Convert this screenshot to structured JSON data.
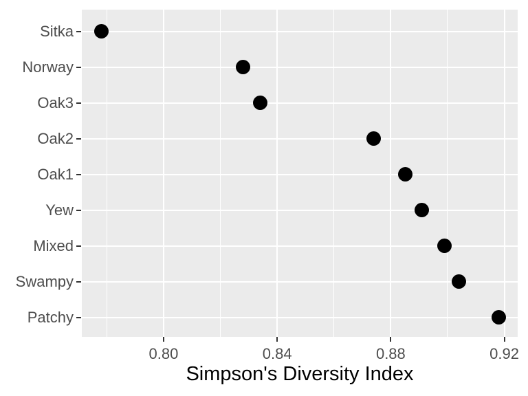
{
  "chart_data": {
    "type": "scatter",
    "variant": "cleveland-dot-plot",
    "orientation": "horizontal",
    "title": "",
    "xlabel": "Simpson's Diversity Index",
    "ylabel": "",
    "categories": [
      "Sitka",
      "Norway",
      "Oak3",
      "Oak2",
      "Oak1",
      "Yew",
      "Mixed",
      "Swampy",
      "Patchy"
    ],
    "values": [
      0.778,
      0.828,
      0.834,
      0.874,
      0.885,
      0.891,
      0.899,
      0.904,
      0.918
    ],
    "x_tick_labels": [
      "0.80",
      "0.84",
      "0.88",
      "0.92"
    ],
    "x_major_ticks": [
      0.8,
      0.84,
      0.88,
      0.92
    ],
    "x_minor_ticks": [
      0.78,
      0.82,
      0.86,
      0.9
    ],
    "xlim": [
      0.7712,
      0.9247
    ],
    "grid": "x: major+minor, y: major only",
    "legend": false,
    "colors": {
      "figure_background": "#FFFFFF",
      "panel_background": "#EBEBEB",
      "gridline": "#FFFFFF",
      "point": "#000000",
      "tick_mark": "#333333",
      "tick_label": "#4D4D4D",
      "axis_title": "#000000"
    }
  }
}
